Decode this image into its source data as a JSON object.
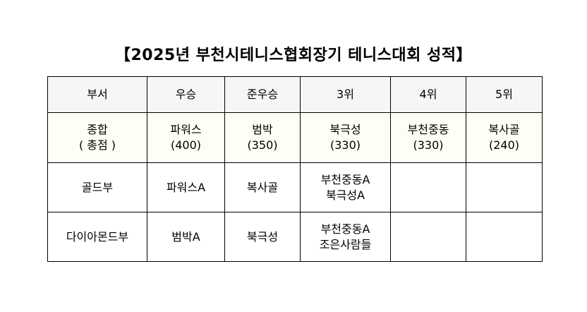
{
  "title": "【2025년 부천시테니스협회장기 테니스대회 성적】",
  "headers": [
    "부서",
    "우승",
    "준우승",
    "3위",
    "4위",
    "5위"
  ],
  "total_row": {
    "label": "종합",
    "sublabel": "( 총점 )",
    "cells": [
      {
        "name": "파워스",
        "score": "(400)"
      },
      {
        "name": "범박",
        "score": "(350)"
      },
      {
        "name": "북극성",
        "score": "(330)"
      },
      {
        "name": "부천중동",
        "score": "(330)"
      },
      {
        "name": "복사골",
        "score": "(240)"
      }
    ]
  },
  "rows": [
    {
      "division": "골드부",
      "cells": [
        [
          "파워스A"
        ],
        [
          "복사골"
        ],
        [
          "부천중동A",
          "북극성A"
        ],
        [],
        []
      ]
    },
    {
      "division": "다이아몬드부",
      "cells": [
        [
          "범박A"
        ],
        [
          "북극성"
        ],
        [
          "부천중동A",
          "조은사람들"
        ],
        [],
        []
      ]
    }
  ]
}
